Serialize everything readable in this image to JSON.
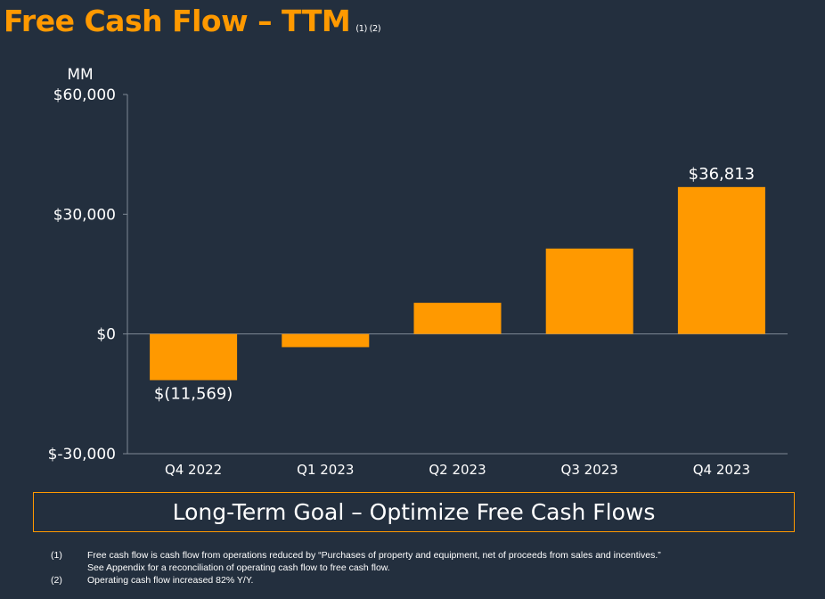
{
  "title": "Free Cash Flow – TTM",
  "title_footnote_refs": "(1) (2)",
  "chart_data": {
    "type": "bar",
    "ylabel": "MM",
    "categories": [
      "Q4 2022",
      "Q1 2023",
      "Q2 2023",
      "Q3 2023",
      "Q4 2023"
    ],
    "values": [
      -11569,
      -3300,
      7800,
      21400,
      36813
    ],
    "data_labels": {
      "0": "$(11,569)",
      "4": "$36,813"
    },
    "ylim": [
      -30000,
      60000
    ],
    "yticks": [
      -30000,
      0,
      30000,
      60000
    ],
    "ytick_labels": [
      "$-30,000",
      "$0",
      "$30,000",
      "$60,000"
    ],
    "grid": false,
    "bar_color": "#ff9900"
  },
  "goal_banner": "Long-Term Goal – Optimize Free Cash Flows",
  "footnotes": [
    {
      "num": "(1)",
      "lines": [
        "Free cash flow is cash flow from operations reduced by “Purchases of property and equipment, net of proceeds from sales and incentives.”",
        "See Appendix for a reconciliation of operating cash flow to free cash flow."
      ]
    },
    {
      "num": "(2)",
      "lines": [
        "Operating cash flow increased 82% Y/Y."
      ]
    }
  ],
  "colors": {
    "background": "#232f3e",
    "accent": "#ff9900"
  }
}
